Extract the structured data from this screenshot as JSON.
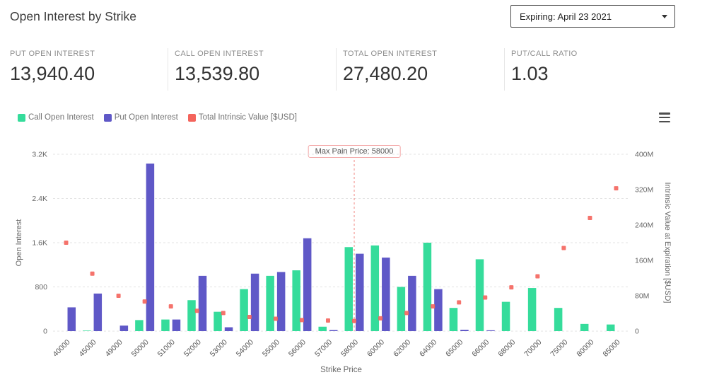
{
  "header": {
    "title": "Open Interest by Strike",
    "expiry_selector": {
      "value": "Expiring: April 23 2021"
    }
  },
  "stats": [
    {
      "label": "PUT OPEN INTEREST",
      "value": "13,940.40"
    },
    {
      "label": "CALL OPEN INTEREST",
      "value": "13,539.80"
    },
    {
      "label": "TOTAL OPEN INTEREST",
      "value": "27,480.20"
    },
    {
      "label": "PUT/CALL RATIO",
      "value": "1.03"
    }
  ],
  "chart_data": {
    "type": "bar",
    "categories": [
      40000,
      45000,
      49000,
      50000,
      51000,
      52000,
      53000,
      54000,
      55000,
      56000,
      57000,
      58000,
      60000,
      62000,
      64000,
      65000,
      66000,
      68000,
      70000,
      75000,
      80000,
      85000
    ],
    "series": [
      {
        "name": "Call Open Interest",
        "type": "bar",
        "axis": "left",
        "color": "#35DC9B",
        "values": [
          0,
          10,
          0,
          200,
          210,
          560,
          350,
          760,
          1000,
          1100,
          80,
          1520,
          1550,
          800,
          1600,
          420,
          1300,
          530,
          780,
          420,
          130,
          120
        ]
      },
      {
        "name": "Put Open Interest",
        "type": "bar",
        "axis": "left",
        "color": "#5F58C7",
        "values": [
          430,
          680,
          100,
          3030,
          210,
          1000,
          70,
          1040,
          1070,
          1680,
          20,
          1400,
          1330,
          1000,
          760,
          25,
          15,
          0,
          0,
          0,
          0,
          0
        ]
      },
      {
        "name": "Total Intrinsic Value [$USD]",
        "type": "scatter",
        "axis": "right",
        "color": "#F4645C",
        "unit": "millions",
        "values": [
          200,
          130,
          80,
          67,
          56,
          46,
          41,
          32,
          28,
          25,
          24,
          23,
          29,
          41,
          56,
          65,
          76,
          99,
          124,
          188,
          256,
          323
        ]
      }
    ],
    "left_axis": {
      "label": "Open Interest",
      "min": 0,
      "max": 3200,
      "tick_values": [
        0,
        800,
        1600,
        2400,
        3200
      ],
      "tick_labels": [
        "0",
        "800",
        "1.6K",
        "2.4K",
        "3.2K"
      ]
    },
    "right_axis": {
      "label": "Intrinsic Value at Expiration [$USD]",
      "min": 0,
      "max": 400,
      "unit": "millions",
      "tick_values": [
        0,
        80,
        160,
        240,
        320,
        400
      ],
      "tick_labels": [
        "0",
        "80M",
        "160M",
        "240M",
        "320M",
        "400M"
      ]
    },
    "x_axis": {
      "label": "Strike Price"
    },
    "annotation": {
      "label": "Max Pain Price: 58000",
      "strike": 58000
    },
    "grid": "dashed horizontal",
    "legend_position": "top-left",
    "colors": {
      "grid": "#e3e3e3",
      "axis_text": "#666666",
      "max_pain_line": "#f08a84"
    }
  }
}
